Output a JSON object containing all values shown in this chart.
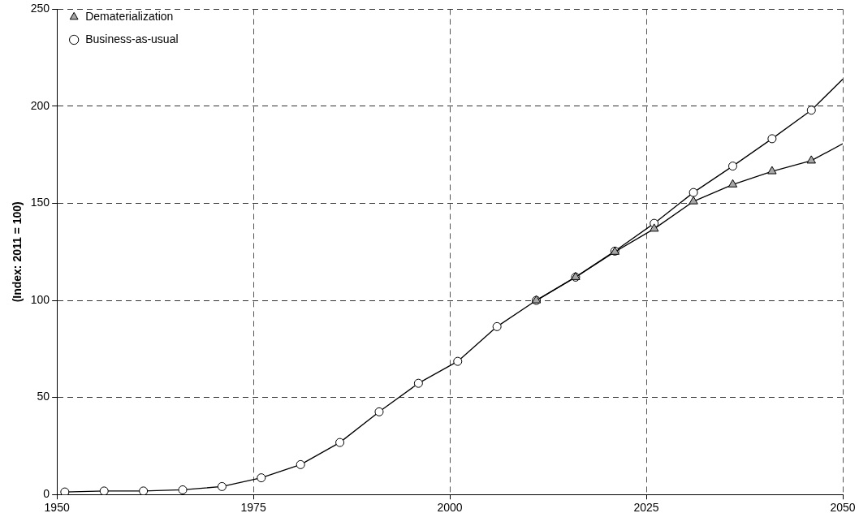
{
  "chart_data": {
    "type": "line",
    "ylabel": "(Index: 2011 = 100)",
    "series": [
      {
        "name": "Business-as-usual",
        "color": "#ffffff",
        "marker": "circle",
        "x": [
          1951,
          1956,
          1961,
          1966,
          1971,
          1976,
          1981,
          1986,
          1991,
          1996,
          2001,
          2006,
          2011,
          2016,
          2021,
          2026,
          2031,
          2036,
          2041,
          2046,
          2050
        ],
        "values": [
          1.3,
          1.8,
          1.8,
          2.4,
          4.1,
          8.6,
          15.4,
          26.8,
          42.6,
          57.3,
          68.6,
          86.5,
          100,
          112,
          125.4,
          139.7,
          155.6,
          169.2,
          183.3,
          198,
          214
        ]
      },
      {
        "name": "Dematerialization",
        "color": "#a6a6a6",
        "marker": "triangle",
        "x": [
          2011,
          2016,
          2021,
          2026,
          2031,
          2036,
          2041,
          2046,
          2050
        ],
        "values": [
          100,
          112,
          125,
          136.9,
          151,
          159.7,
          166.5,
          172,
          180.7
        ]
      }
    ],
    "xlim": [
      1950,
      2050
    ],
    "xticks": [
      1950,
      1975,
      2000,
      2025,
      2050
    ],
    "ylim": [
      0,
      250
    ],
    "yticks": [
      0,
      50,
      100,
      150,
      200,
      250
    ],
    "grid": true,
    "legend": "top left",
    "line_style": "solid"
  }
}
